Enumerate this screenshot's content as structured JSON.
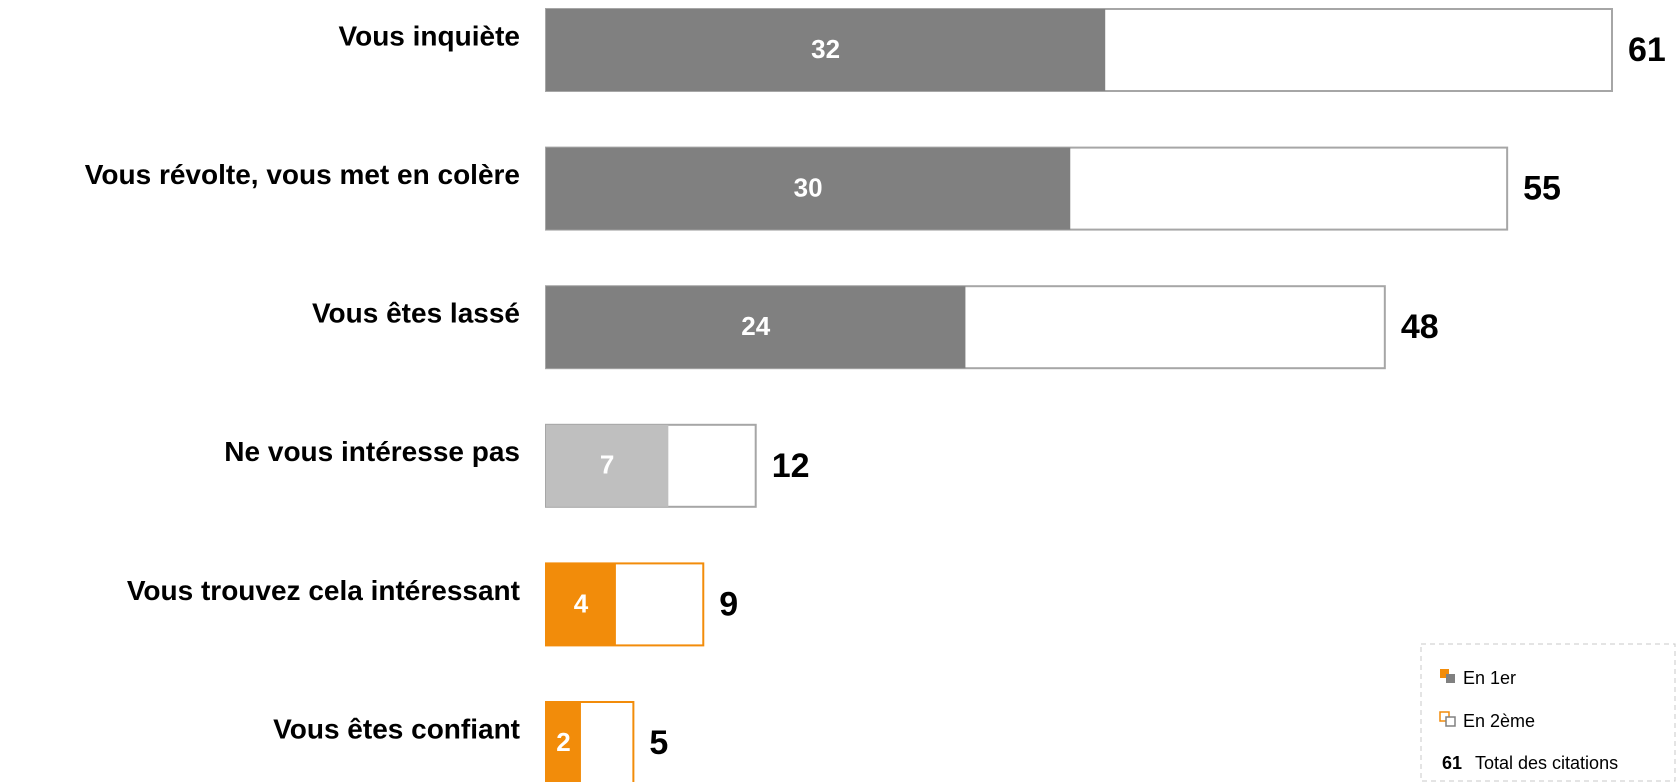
{
  "chart_data": {
    "type": "bar",
    "categories": [
      "Vous inquiète",
      "Vous révolte, vous met en colère",
      "Vous êtes lassé",
      "Ne vous intéresse pas",
      "Vous trouvez cela intéressant",
      "Vous êtes confiant"
    ],
    "series": [
      {
        "name": "En 1er",
        "values": [
          32,
          30,
          24,
          7,
          4,
          2
        ],
        "colors": [
          "#808080",
          "#808080",
          "#808080",
          "#bfbfbf",
          "#f28c0a",
          "#f28c0a"
        ]
      },
      {
        "name": "En 2ème",
        "outline_colors": [
          "#a6a6a6",
          "#a6a6a6",
          "#a6a6a6",
          "#a6a6a6",
          "#f28c0a",
          "#f28c0a"
        ]
      }
    ],
    "totals": [
      61,
      55,
      48,
      12,
      9,
      5
    ],
    "legend": {
      "total_example": 61,
      "total_label": "Total des citations"
    }
  }
}
